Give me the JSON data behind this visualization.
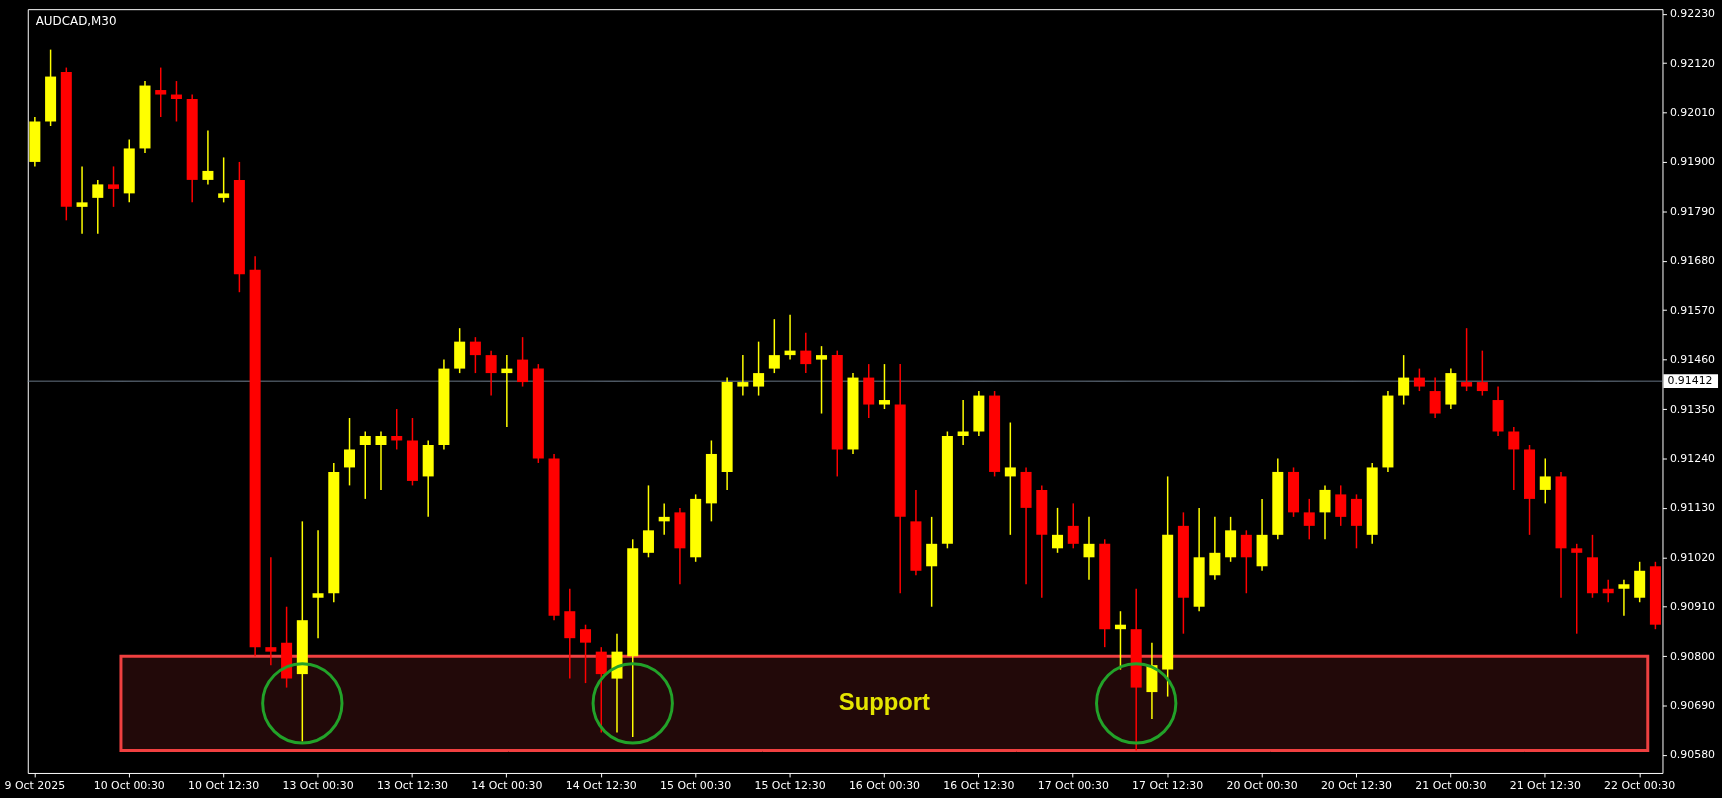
{
  "chart_data": {
    "type": "candlestick",
    "title": "AUDCAD,M30",
    "categories": [
      "9 Oct 2025",
      null,
      null,
      null,
      null,
      null,
      "10 Oct 00:30",
      null,
      null,
      null,
      null,
      null,
      "10 Oct 12:30",
      null,
      null,
      null,
      null,
      null,
      "13 Oct 00:30",
      null,
      null,
      null,
      null,
      null,
      "13 Oct 12:30",
      null,
      null,
      null,
      null,
      null,
      "14 Oct 00:30",
      null,
      null,
      null,
      null,
      null,
      "14 Oct 12:30",
      null,
      null,
      null,
      null,
      null,
      "15 Oct 00:30",
      null,
      null,
      null,
      null,
      null,
      "15 Oct 12:30",
      null,
      null,
      null,
      null,
      null,
      "16 Oct 00:30",
      null,
      null,
      null,
      null,
      null,
      "16 Oct 12:30",
      null,
      null,
      null,
      null,
      null,
      "17 Oct 00:30",
      null,
      null,
      null,
      null,
      null,
      "17 Oct 12:30",
      null,
      null,
      null,
      null,
      null,
      "20 Oct 00:30",
      null,
      null,
      null,
      null,
      null,
      "20 Oct 12:30",
      null,
      null,
      null,
      null,
      null,
      "21 Oct 00:30",
      null,
      null,
      null,
      null,
      null,
      "21 Oct 12:30",
      null,
      null,
      null,
      null,
      null,
      "22 Oct 00:30",
      null
    ],
    "ohlc": [
      [
        0.919,
        0.92,
        0.9189,
        0.9199
      ],
      [
        0.9199,
        0.9215,
        0.9198,
        0.9209
      ],
      [
        0.921,
        0.9211,
        0.9177,
        0.918
      ],
      [
        0.918,
        0.9189,
        0.9174,
        0.9181
      ],
      [
        0.9182,
        0.9186,
        0.9174,
        0.9185
      ],
      [
        0.9185,
        0.9189,
        0.918,
        0.9184
      ],
      [
        0.9183,
        0.9195,
        0.9181,
        0.9193
      ],
      [
        0.9193,
        0.9208,
        0.9192,
        0.9207
      ],
      [
        0.9206,
        0.9211,
        0.92,
        0.9205
      ],
      [
        0.9205,
        0.9208,
        0.9199,
        0.9204
      ],
      [
        0.9204,
        0.9205,
        0.9181,
        0.9186
      ],
      [
        0.9186,
        0.9197,
        0.9185,
        0.9188
      ],
      [
        0.9182,
        0.9191,
        0.9181,
        0.9183
      ],
      [
        0.9186,
        0.919,
        0.9161,
        0.9165
      ],
      [
        0.9166,
        0.9169,
        0.908,
        0.9082
      ],
      [
        0.9082,
        0.9102,
        0.9078,
        0.9081
      ],
      [
        0.9083,
        0.9091,
        0.9073,
        0.9075
      ],
      [
        0.9076,
        0.911,
        0.9061,
        0.9088
      ],
      [
        0.9093,
        0.9108,
        0.9084,
        0.9094
      ],
      [
        0.9094,
        0.9123,
        0.9092,
        0.9121
      ],
      [
        0.9122,
        0.9133,
        0.9118,
        0.9126
      ],
      [
        0.9127,
        0.913,
        0.9115,
        0.9129
      ],
      [
        0.9127,
        0.913,
        0.9117,
        0.9129
      ],
      [
        0.9129,
        0.9135,
        0.9126,
        0.9128
      ],
      [
        0.9128,
        0.9133,
        0.9118,
        0.9119
      ],
      [
        0.912,
        0.9128,
        0.9111,
        0.9127
      ],
      [
        0.9127,
        0.9146,
        0.9126,
        0.9144
      ],
      [
        0.9144,
        0.9153,
        0.9143,
        0.915
      ],
      [
        0.915,
        0.9151,
        0.9143,
        0.9147
      ],
      [
        0.9147,
        0.9148,
        0.9138,
        0.9143
      ],
      [
        0.9143,
        0.9147,
        0.9131,
        0.9144
      ],
      [
        0.9146,
        0.9151,
        0.914,
        0.9141
      ],
      [
        0.9144,
        0.9145,
        0.9123,
        0.9124
      ],
      [
        0.9124,
        0.9125,
        0.9088,
        0.9089
      ],
      [
        0.909,
        0.9095,
        0.9075,
        0.9084
      ],
      [
        0.9086,
        0.9087,
        0.9074,
        0.9083
      ],
      [
        0.9081,
        0.9082,
        0.9063,
        0.9076
      ],
      [
        0.9075,
        0.9085,
        0.9063,
        0.9081
      ],
      [
        0.908,
        0.9106,
        0.9062,
        0.9104
      ],
      [
        0.9103,
        0.9118,
        0.9102,
        0.9108
      ],
      [
        0.911,
        0.9114,
        0.9107,
        0.9111
      ],
      [
        0.9112,
        0.9113,
        0.9096,
        0.9104
      ],
      [
        0.9102,
        0.9116,
        0.9101,
        0.9115
      ],
      [
        0.9114,
        0.9128,
        0.911,
        0.9125
      ],
      [
        0.9121,
        0.9142,
        0.9117,
        0.9141
      ],
      [
        0.914,
        0.9147,
        0.9138,
        0.9141
      ],
      [
        0.914,
        0.915,
        0.9138,
        0.9143
      ],
      [
        0.9144,
        0.9155,
        0.9143,
        0.9147
      ],
      [
        0.9147,
        0.9156,
        0.9146,
        0.9148
      ],
      [
        0.9148,
        0.9152,
        0.9143,
        0.9145
      ],
      [
        0.9146,
        0.9149,
        0.9134,
        0.9147
      ],
      [
        0.9147,
        0.9148,
        0.912,
        0.9126
      ],
      [
        0.9126,
        0.9143,
        0.9125,
        0.9142
      ],
      [
        0.9142,
        0.9145,
        0.9133,
        0.9136
      ],
      [
        0.9136,
        0.9145,
        0.9135,
        0.9137
      ],
      [
        0.9136,
        0.9145,
        0.9094,
        0.9111
      ],
      [
        0.911,
        0.9117,
        0.9098,
        0.9099
      ],
      [
        0.91,
        0.9111,
        0.9091,
        0.9105
      ],
      [
        0.9105,
        0.913,
        0.9104,
        0.9129
      ],
      [
        0.9129,
        0.9137,
        0.9127,
        0.913
      ],
      [
        0.913,
        0.9139,
        0.9129,
        0.9138
      ],
      [
        0.9138,
        0.9139,
        0.912,
        0.9121
      ],
      [
        0.912,
        0.9132,
        0.9107,
        0.9122
      ],
      [
        0.9121,
        0.9122,
        0.9096,
        0.9113
      ],
      [
        0.9117,
        0.9118,
        0.9093,
        0.9107
      ],
      [
        0.9104,
        0.9113,
        0.9103,
        0.9107
      ],
      [
        0.9109,
        0.9114,
        0.9104,
        0.9105
      ],
      [
        0.9102,
        0.9111,
        0.9097,
        0.9105
      ],
      [
        0.9105,
        0.9106,
        0.9082,
        0.9086
      ],
      [
        0.9086,
        0.909,
        0.9077,
        0.9087
      ],
      [
        0.9086,
        0.9095,
        0.9059,
        0.9073
      ],
      [
        0.9072,
        0.9083,
        0.9066,
        0.9078
      ],
      [
        0.9077,
        0.912,
        0.9071,
        0.9107
      ],
      [
        0.9109,
        0.9112,
        0.9085,
        0.9093
      ],
      [
        0.9091,
        0.9113,
        0.909,
        0.9102
      ],
      [
        0.9098,
        0.9111,
        0.9097,
        0.9103
      ],
      [
        0.9102,
        0.9111,
        0.9101,
        0.9108
      ],
      [
        0.9107,
        0.9108,
        0.9094,
        0.9102
      ],
      [
        0.91,
        0.9115,
        0.9099,
        0.9107
      ],
      [
        0.9107,
        0.9124,
        0.9106,
        0.9121
      ],
      [
        0.9121,
        0.9122,
        0.9111,
        0.9112
      ],
      [
        0.9112,
        0.9115,
        0.9106,
        0.9109
      ],
      [
        0.9112,
        0.9118,
        0.9106,
        0.9117
      ],
      [
        0.9116,
        0.9118,
        0.9109,
        0.9111
      ],
      [
        0.9115,
        0.9116,
        0.9104,
        0.9109
      ],
      [
        0.9107,
        0.9123,
        0.9105,
        0.9122
      ],
      [
        0.9122,
        0.9139,
        0.9121,
        0.9138
      ],
      [
        0.9138,
        0.9147,
        0.9136,
        0.9142
      ],
      [
        0.9142,
        0.9144,
        0.9139,
        0.914
      ],
      [
        0.9139,
        0.9142,
        0.9133,
        0.9134
      ],
      [
        0.9136,
        0.9144,
        0.9135,
        0.9143
      ],
      [
        0.9141,
        0.9153,
        0.9139,
        0.914
      ],
      [
        0.9141,
        0.9148,
        0.9138,
        0.9139
      ],
      [
        0.9137,
        0.914,
        0.9129,
        0.913
      ],
      [
        0.913,
        0.9131,
        0.9117,
        0.9126
      ],
      [
        0.9126,
        0.9127,
        0.9107,
        0.9115
      ],
      [
        0.9117,
        0.9124,
        0.9114,
        0.912
      ],
      [
        0.912,
        0.9121,
        0.9093,
        0.9104
      ],
      [
        0.9104,
        0.9105,
        0.9085,
        0.9103
      ],
      [
        0.9102,
        0.9107,
        0.9093,
        0.9094
      ],
      [
        0.9095,
        0.9097,
        0.9092,
        0.9094
      ],
      [
        0.9095,
        0.9097,
        0.9089,
        0.9096
      ],
      [
        0.9093,
        0.9101,
        0.9092,
        0.9099
      ],
      [
        0.91,
        0.9101,
        0.9086,
        0.9087
      ]
    ],
    "colors": [
      "#ffff00",
      "#ffff00",
      "#ff0000",
      "#ffff00",
      "#ffff00",
      "#ff0000",
      "#ffff00",
      "#ffff00",
      "#ff0000",
      "#ff0000",
      "#ff0000",
      "#ffff00",
      "#ffff00",
      "#ff0000",
      "#ff0000",
      "#ff0000",
      "#ff0000",
      "#ffff00",
      "#ffff00",
      "#ffff00",
      "#ffff00",
      "#ffff00",
      "#ffff00",
      "#ff0000",
      "#ff0000",
      "#ffff00",
      "#ffff00",
      "#ffff00",
      "#ff0000",
      "#ff0000",
      "#ffff00",
      "#ff0000",
      "#ff0000",
      "#ff0000",
      "#ff0000",
      "#ff0000",
      "#ff0000",
      "#ffff00",
      "#ffff00",
      "#ffff00",
      "#ffff00",
      "#ff0000",
      "#ffff00",
      "#ffff00",
      "#ffff00",
      "#ffff00",
      "#ffff00",
      "#ffff00",
      "#ffff00",
      "#ff0000",
      "#ffff00",
      "#ff0000",
      "#ffff00",
      "#ff0000",
      "#ffff00",
      "#ff0000",
      "#ff0000",
      "#ffff00",
      "#ffff00",
      "#ffff00",
      "#ffff00",
      "#ff0000",
      "#ffff00",
      "#ff0000",
      "#ff0000",
      "#ffff00",
      "#ff0000",
      "#ffff00",
      "#ff0000",
      "#ffff00",
      "#ff0000",
      "#ffff00",
      "#ffff00",
      "#ff0000",
      "#ffff00",
      "#ffff00",
      "#ffff00",
      "#ff0000",
      "#ffff00",
      "#ffff00",
      "#ff0000",
      "#ff0000",
      "#ffff00",
      "#ff0000",
      "#ff0000",
      "#ffff00",
      "#ffff00",
      "#ffff00",
      "#ff0000",
      "#ff0000",
      "#ffff00",
      "#ff0000",
      "#ff0000",
      "#ff0000",
      "#ff0000",
      "#ff0000",
      "#ffff00",
      "#ff0000",
      "#ff0000",
      "#ff0000",
      "#ff0000",
      "#ffff00",
      "#ffff00",
      "#ff0000"
    ],
    "ylim": [
      0.9054,
      0.9224
    ],
    "yticks": [
      {
        "value": 0.9058,
        "label": "0.90580"
      },
      {
        "value": 0.9069,
        "label": "0.90690"
      },
      {
        "value": 0.908,
        "label": "0.90800"
      },
      {
        "value": 0.9091,
        "label": "0.90910"
      },
      {
        "value": 0.9102,
        "label": "0.91020"
      },
      {
        "value": 0.9113,
        "label": "0.91130"
      },
      {
        "value": 0.9124,
        "label": "0.91240"
      },
      {
        "value": 0.9135,
        "label": "0.91350"
      },
      {
        "value": 0.9146,
        "label": "0.91460"
      },
      {
        "value": 0.9157,
        "label": "0.91570"
      },
      {
        "value": 0.9168,
        "label": "0.91680"
      },
      {
        "value": 0.9179,
        "label": "0.91790"
      },
      {
        "value": 0.919,
        "label": "0.91900"
      },
      {
        "value": 0.9201,
        "label": "0.92010"
      },
      {
        "value": 0.9212,
        "label": "0.92120"
      },
      {
        "value": 0.9223,
        "label": "0.92230"
      }
    ],
    "ref_lines": [
      {
        "axis": "y",
        "value": 0.91412,
        "label": "0.91412",
        "color": "#778899"
      }
    ],
    "bands": [
      {
        "axis": "y",
        "from": 0.9059,
        "to": 0.908,
        "label": "Support",
        "color": "#f04040"
      }
    ]
  }
}
